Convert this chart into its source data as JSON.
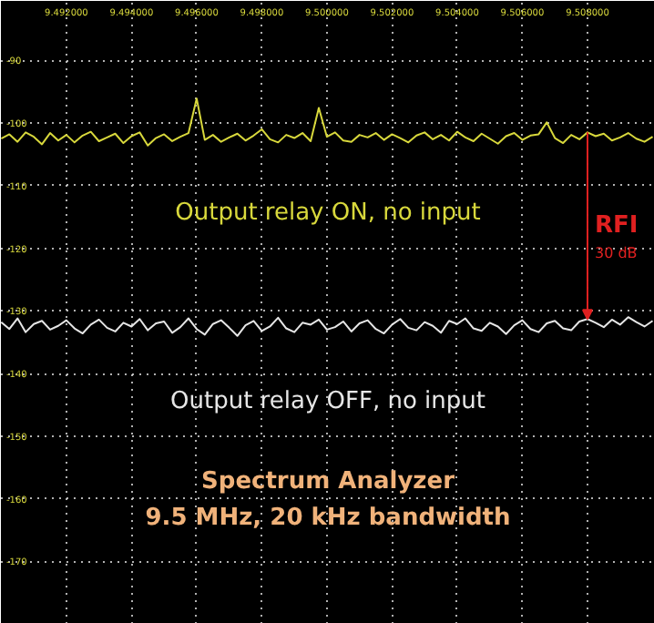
{
  "chart_data": {
    "type": "line",
    "title": "Spectrum Analyzer",
    "subtitle": "9.5 MHz, 20 kHz bandwidth",
    "xlim": [
      9.48999,
      9.51007
    ],
    "ylim": [
      -180,
      -80.5
    ],
    "xticks": [
      {
        "value": 9.492,
        "label": "9.492000"
      },
      {
        "value": 9.494,
        "label": "9.494000"
      },
      {
        "value": 9.496,
        "label": "9.496000"
      },
      {
        "value": 9.498,
        "label": "9.498000"
      },
      {
        "value": 9.5,
        "label": "9.500000"
      },
      {
        "value": 9.502,
        "label": "9.502000"
      },
      {
        "value": 9.504,
        "label": "9.504000"
      },
      {
        "value": 9.506,
        "label": "9.506000"
      },
      {
        "value": 9.508,
        "label": "9.508000"
      }
    ],
    "yticks": [
      -90,
      -100,
      -110,
      -120,
      -130,
      -140,
      -150,
      -160,
      -170
    ],
    "grid": true,
    "x": [
      9.49,
      9.49025,
      9.4905,
      9.49075,
      9.491,
      9.49125,
      9.4915,
      9.49175,
      9.492,
      9.49225,
      9.4925,
      9.49275,
      9.493,
      9.49325,
      9.4935,
      9.49375,
      9.494,
      9.49425,
      9.4945,
      9.49475,
      9.495,
      9.49525,
      9.4955,
      9.49575,
      9.496,
      9.49625,
      9.4965,
      9.49675,
      9.497,
      9.49725,
      9.4975,
      9.49775,
      9.498,
      9.49825,
      9.4985,
      9.49875,
      9.499,
      9.49925,
      9.4995,
      9.49975,
      9.5,
      9.50025,
      9.5005,
      9.50075,
      9.501,
      9.50125,
      9.5015,
      9.50175,
      9.502,
      9.50225,
      9.5025,
      9.50275,
      9.503,
      9.50325,
      9.5035,
      9.50375,
      9.504,
      9.50425,
      9.5045,
      9.50475,
      9.505,
      9.50525,
      9.5055,
      9.50575,
      9.506,
      9.50625,
      9.5065,
      9.50675,
      9.507,
      9.50725,
      9.5075,
      9.50775,
      9.508,
      9.50825,
      9.5085,
      9.50875,
      9.509,
      9.50925,
      9.5095,
      9.50975,
      9.51
    ],
    "series": [
      {
        "name": "Output relay ON, no input",
        "color": "#d8d83c",
        "values": [
          -102.5,
          -101.8,
          -103.0,
          -101.5,
          -102.2,
          -103.4,
          -101.6,
          -102.8,
          -101.9,
          -103.1,
          -102.0,
          -101.4,
          -102.9,
          -102.3,
          -101.7,
          -103.2,
          -102.1,
          -101.5,
          -103.6,
          -102.4,
          -101.8,
          -102.9,
          -102.2,
          -101.6,
          -96.1,
          -102.7,
          -101.9,
          -103.0,
          -102.3,
          -101.7,
          -102.8,
          -102.0,
          -101.0,
          -102.6,
          -103.1,
          -101.9,
          -102.4,
          -101.6,
          -102.9,
          -97.6,
          -102.2,
          -101.5,
          -102.8,
          -103.0,
          -101.9,
          -102.3,
          -101.6,
          -102.7,
          -101.8,
          -102.4,
          -103.1,
          -102.0,
          -101.5,
          -102.6,
          -101.9,
          -102.8,
          -101.4,
          -102.3,
          -102.9,
          -101.7,
          -102.5,
          -103.3,
          -102.1,
          -101.6,
          -102.7,
          -102.0,
          -101.8,
          -99.9,
          -102.4,
          -103.2,
          -101.9,
          -102.6,
          -101.5,
          -102.1,
          -101.7,
          -102.8,
          -102.3,
          -101.6,
          -102.5,
          -103.0,
          -102.2
        ]
      },
      {
        "name": "Output relay OFF, no input",
        "color": "#e6e6e6",
        "values": [
          -131.8,
          -132.9,
          -131.2,
          -133.4,
          -132.1,
          -131.6,
          -133.0,
          -132.4,
          -131.5,
          -132.8,
          -133.6,
          -132.2,
          -131.4,
          -132.7,
          -133.3,
          -131.9,
          -132.5,
          -131.3,
          -133.1,
          -132.0,
          -131.7,
          -133.5,
          -132.6,
          -131.2,
          -132.9,
          -133.8,
          -132.1,
          -131.5,
          -132.7,
          -134.0,
          -132.3,
          -131.6,
          -133.2,
          -132.5,
          -131.1,
          -132.8,
          -133.4,
          -131.9,
          -132.2,
          -131.4,
          -133.0,
          -132.6,
          -131.7,
          -133.3,
          -132.0,
          -131.5,
          -132.9,
          -133.6,
          -132.2,
          -131.3,
          -132.7,
          -133.1,
          -131.8,
          -132.4,
          -133.5,
          -131.6,
          -132.1,
          -131.2,
          -132.8,
          -133.2,
          -131.9,
          -132.5,
          -133.7,
          -132.3,
          -131.5,
          -132.9,
          -133.4,
          -132.0,
          -131.6,
          -132.8,
          -133.1,
          -131.7,
          -131.3,
          -131.9,
          -132.6,
          -131.4,
          -132.2,
          -131.0,
          -131.8,
          -132.5,
          -131.6
        ]
      }
    ],
    "annotations": [
      "RFI",
      "30 dB"
    ]
  }
}
